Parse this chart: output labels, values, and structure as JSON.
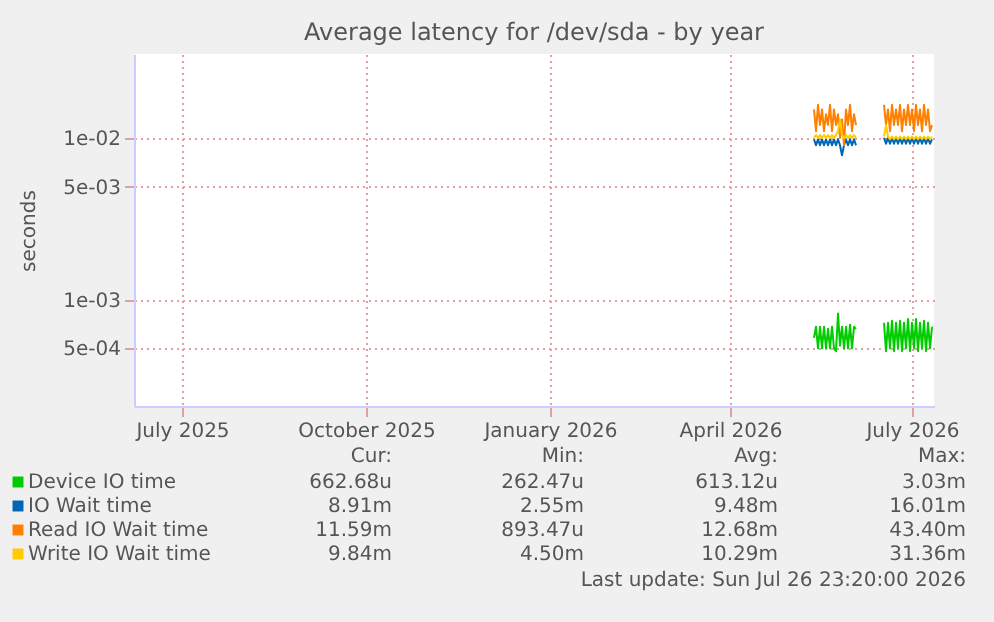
{
  "chart_data": {
    "type": "line",
    "title": "Average latency for /dev/sda - by year",
    "ylabel": "seconds",
    "x": [
      "2026-05-28",
      "2026-05-29",
      "2026-05-30",
      "2026-05-31",
      "2026-06-01",
      "2026-06-02",
      "2026-06-03",
      "2026-06-04",
      "2026-06-05",
      "2026-06-06",
      "2026-06-07",
      "2026-06-08",
      "2026-06-09",
      "2026-06-10",
      "2026-06-11",
      "2026-06-12",
      "2026-06-13",
      "2026-06-14",
      "2026-06-15",
      "2026-06-16",
      "2026-06-17",
      "2026-06-18",
      "2026-06-25",
      "2026-07-02",
      "2026-07-03",
      "2026-07-04",
      "2026-07-05",
      "2026-07-06",
      "2026-07-07",
      "2026-07-08",
      "2026-07-09",
      "2026-07-10",
      "2026-07-11",
      "2026-07-12",
      "2026-07-13",
      "2026-07-14",
      "2026-07-15",
      "2026-07-16",
      "2026-07-17",
      "2026-07-18",
      "2026-07-19",
      "2026-07-20",
      "2026-07-21",
      "2026-07-22",
      "2026-07-23",
      "2026-07-24",
      "2026-07-25",
      "2026-07-26"
    ],
    "series": [
      {
        "name": "Device IO time",
        "color": "#00cc00",
        "values": [
          0.00058,
          0.00068,
          0.0005,
          0.00068,
          0.0005,
          0.00068,
          0.0005,
          0.00066,
          0.0005,
          0.00068,
          0.0005,
          0.00048,
          0.00082,
          0.00052,
          0.00068,
          0.0005,
          0.00068,
          0.0005,
          0.0007,
          0.0005,
          0.00068,
          0.00066,
          null,
          0.00072,
          0.00048,
          0.00072,
          0.0005,
          0.00074,
          0.00048,
          0.00072,
          0.0005,
          0.00074,
          0.00048,
          0.00072,
          0.0005,
          0.00076,
          0.00048,
          0.00072,
          0.0005,
          0.00076,
          0.00048,
          0.00072,
          0.0005,
          0.00074,
          0.00048,
          0.00072,
          0.0005,
          0.00068
        ]
      },
      {
        "name": "IO Wait time",
        "color": "#0066b3",
        "values": [
          0.0098,
          0.009,
          0.0098,
          0.009,
          0.0098,
          0.009,
          0.0098,
          0.009,
          0.0098,
          0.009,
          0.0098,
          0.009,
          0.0098,
          0.009,
          0.0078,
          0.009,
          0.0098,
          0.009,
          0.0098,
          0.009,
          0.0098,
          0.009,
          null,
          0.01,
          0.0092,
          0.01,
          0.0092,
          0.01,
          0.0092,
          0.01,
          0.0092,
          0.01,
          0.0092,
          0.01,
          0.0092,
          0.01,
          0.0092,
          0.01,
          0.0092,
          0.01,
          0.0092,
          0.01,
          0.0092,
          0.01,
          0.0092,
          0.01,
          0.0092,
          0.0098
        ]
      },
      {
        "name": "Read IO Wait time",
        "color": "#ff8000",
        "values": [
          0.015,
          0.011,
          0.016,
          0.012,
          0.015,
          0.011,
          0.014,
          0.012,
          0.016,
          0.011,
          0.015,
          0.012,
          0.014,
          0.01,
          0.013,
          0.009,
          0.015,
          0.012,
          0.016,
          0.011,
          0.014,
          0.012,
          null,
          0.016,
          0.012,
          0.015,
          0.011,
          0.016,
          0.012,
          0.015,
          0.012,
          0.016,
          0.011,
          0.015,
          0.012,
          0.016,
          0.012,
          0.015,
          0.011,
          0.016,
          0.012,
          0.015,
          0.011,
          0.016,
          0.012,
          0.015,
          0.011,
          0.012
        ]
      },
      {
        "name": "Write IO Wait time",
        "color": "#ffcc00",
        "values": [
          0.01,
          0.0104,
          0.01,
          0.0104,
          0.01,
          0.0104,
          0.01,
          0.0104,
          0.01,
          0.0104,
          0.01,
          0.0104,
          0.011,
          0.013,
          0.0104,
          0.01,
          0.0104,
          0.01,
          0.0104,
          0.01,
          0.0104,
          0.01,
          null,
          0.0102,
          0.012,
          0.0102,
          0.0098,
          0.0102,
          0.0098,
          0.0102,
          0.0098,
          0.0102,
          0.0098,
          0.0102,
          0.0098,
          0.0102,
          0.0098,
          0.0102,
          0.0098,
          0.0102,
          0.0098,
          0.0102,
          0.0098,
          0.0102,
          0.0098,
          0.0102,
          0.0098,
          0.0102
        ]
      }
    ],
    "xlim": [
      "2025-06-22",
      "2026-07-27"
    ],
    "xticks": [
      {
        "value": "2025-07-16",
        "label": "July 2025"
      },
      {
        "value": "2025-10-16",
        "label": "October 2025"
      },
      {
        "value": "2026-01-16",
        "label": "January 2026"
      },
      {
        "value": "2026-04-16",
        "label": "April 2026"
      },
      {
        "value": "2026-07-16",
        "label": "July 2026"
      }
    ],
    "ylim": [
      0.00022,
      0.033
    ],
    "yticks": [
      {
        "value": 0.0005,
        "label": "5e-04"
      },
      {
        "value": 0.001,
        "label": "1e-03"
      },
      {
        "value": 0.005,
        "label": "5e-03"
      },
      {
        "value": 0.01,
        "label": "1e-02"
      }
    ],
    "log": "y",
    "grid": true,
    "legend": "bottom",
    "annotations": [
      "Cur:",
      "Min:",
      "Avg:",
      "Max:",
      "662.68u",
      "262.47u",
      "613.12u",
      "3.03m",
      "8.91m",
      "2.55m",
      "9.48m",
      "16.01m",
      "11.59m",
      "893.47u",
      "12.68m",
      "43.40m",
      "9.84m",
      "4.50m",
      "10.29m",
      "31.36m",
      "Last update: Sun Jul 26 23:20:00 2026"
    ]
  }
}
